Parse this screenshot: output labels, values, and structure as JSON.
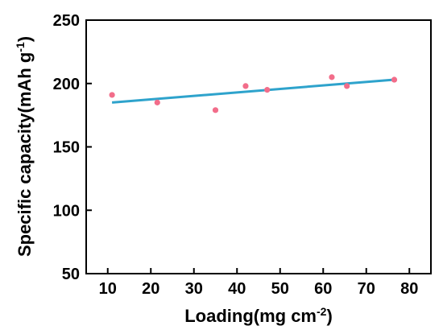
{
  "chart_data": {
    "type": "scatter",
    "xlabel": "Loading(mg cm",
    "xlabel_sup": "-2",
    "xlabel_end": ")",
    "ylabel": "Specific capacity(mAh g",
    "ylabel_sup": "-1",
    "ylabel_end": ")",
    "xlim": [
      5,
      85
    ],
    "ylim": [
      50,
      250
    ],
    "xticks": [
      10,
      20,
      30,
      40,
      50,
      60,
      70,
      80
    ],
    "yticks": [
      50,
      100,
      150,
      200,
      250
    ],
    "grid": false,
    "legend": "none",
    "points": [
      {
        "x": 11,
        "y": 191
      },
      {
        "x": 21.5,
        "y": 185
      },
      {
        "x": 35,
        "y": 179
      },
      {
        "x": 42,
        "y": 198
      },
      {
        "x": 47,
        "y": 195
      },
      {
        "x": 62,
        "y": 205
      },
      {
        "x": 65.5,
        "y": 198
      },
      {
        "x": 76.5,
        "y": 203
      }
    ],
    "fit_line": {
      "x": [
        11,
        76.5
      ],
      "y": [
        185,
        203
      ]
    },
    "colors": {
      "points": "#f26d8a",
      "fit_line": "#2ea3cc",
      "axes": "#000000"
    }
  }
}
